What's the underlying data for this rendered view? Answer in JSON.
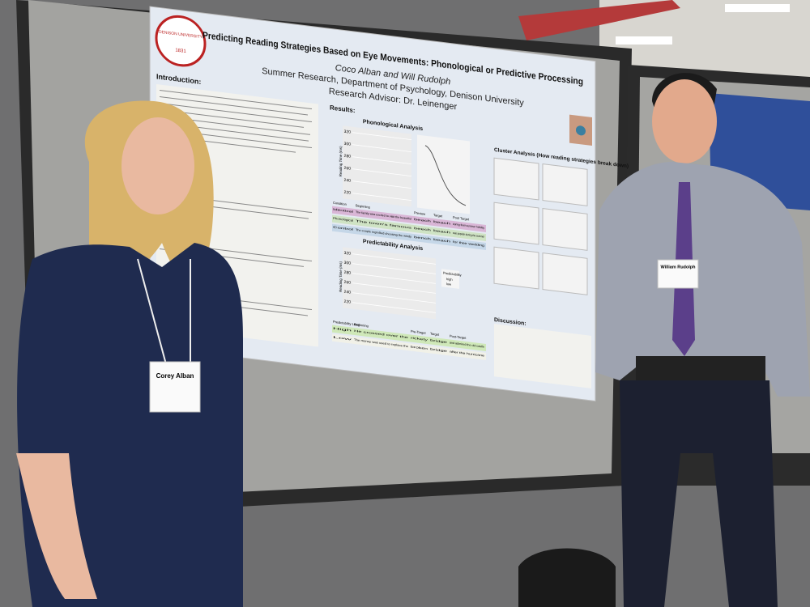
{
  "poster": {
    "seal": {
      "name": "DENISON UNIVERSITY",
      "year": "1831"
    },
    "title": "Predicting Reading Strategies Based on Eye Movements: Phonological or Predictive Processing",
    "authors": "Coco Alban and Will Rudolph",
    "affiliation": "Summer Research, Department of Psychology, Denison University",
    "advisor": "Research Advisor: Dr. Leinenger",
    "sections": {
      "introduction": "Introduction:",
      "results": "Results:",
      "phonological": "Phonological Analysis",
      "predictability": "Predictability Analysis",
      "cluster": "Cluster Analysis (How reading strategies break down)",
      "discussion": "Discussion:"
    },
    "y_axis_label": "Reading Time (ms)",
    "phonological_yticks": [
      320,
      300,
      280,
      260,
      240,
      220
    ],
    "predictability_yticks": [
      320,
      300,
      280,
      260,
      240,
      220
    ],
    "legend": {
      "title": "Predictability",
      "items": [
        "high",
        "low"
      ]
    },
    "phon_table": {
      "header": [
        "Condition",
        "Beginning",
        "Preview",
        "Target",
        "Post Target"
      ],
      "rows": [
        [
          "Identical",
          "The family was excited to visit the beautiful",
          "beach",
          "beach",
          "during their summer holiday"
        ],
        [
          "Phonological",
          "The town's famous",
          "beech",
          "beach",
          "was popular during the summer"
        ],
        [
          "Control",
          "The couple regretted choosing the windy",
          "bench",
          "beach",
          "for their wedding"
        ]
      ]
    },
    "pred_table": {
      "header": [
        "Predictability Level",
        "Beginning",
        "Pre-Target",
        "Target",
        "Post-Target"
      ],
      "rows": [
        [
          "High",
          "He crossed over the",
          "rickety",
          "bridge",
          "and admired the old castle"
        ],
        [
          "Low",
          "The money was used to replace the",
          "broken",
          "bridge",
          "after the hurricane"
        ]
      ]
    }
  },
  "badges": [
    "Corey Alban",
    "William Rudolph"
  ]
}
